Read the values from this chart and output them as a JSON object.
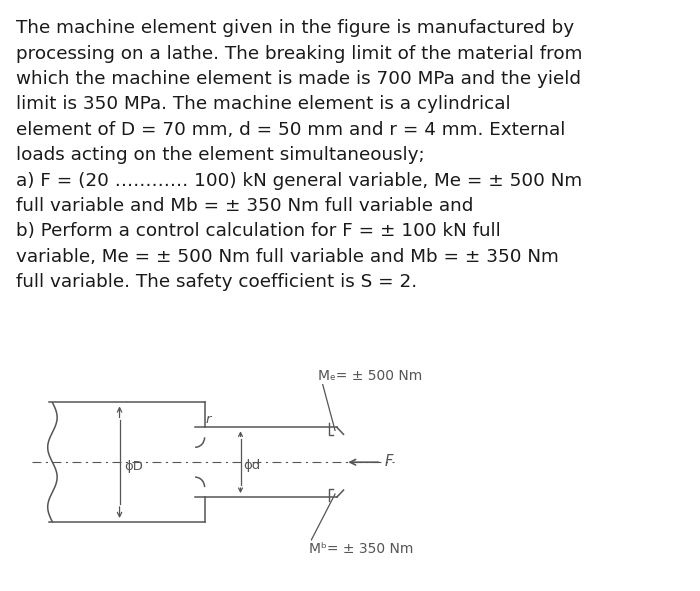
{
  "background_color": "#ffffff",
  "text_color": "#1a1a1a",
  "fig_width": 7.0,
  "fig_height": 5.91,
  "main_text_lines": [
    "The machine element given in the figure is manufactured by",
    "processing on a lathe. The breaking limit of the material from",
    "which the machine element is made is 700 MPa and the yield",
    "limit is 350 MPa. The machine element is a cylindrical",
    "element of D = 70 mm, d = 50 mm and r = 4 mm. External",
    "loads acting on the element simultaneously;",
    "a) F = (20 ………… 100) kN general variable, Me = ± 500 Nm",
    "full variable and Mb = ± 350 Nm full variable and",
    "b) Perform a control calculation for F = ± 100 kN full",
    "variable, Me = ± 500 Nm full variable and Mb = ± 350 Nm",
    "full variable. The safety coefficient is S = 2."
  ],
  "diagram_label_Me": "Mₑ= ± 500 Nm",
  "diagram_label_Mb": "Mᵇ= ± 350 Nm",
  "diagram_label_F": "F",
  "diagram_label_phiD": "ϕD",
  "diagram_label_phid": "ϕd",
  "diagram_label_r": "r",
  "line_color": "#555555",
  "text_fontsize": 13.2,
  "diagram_fontsize": 9.5
}
